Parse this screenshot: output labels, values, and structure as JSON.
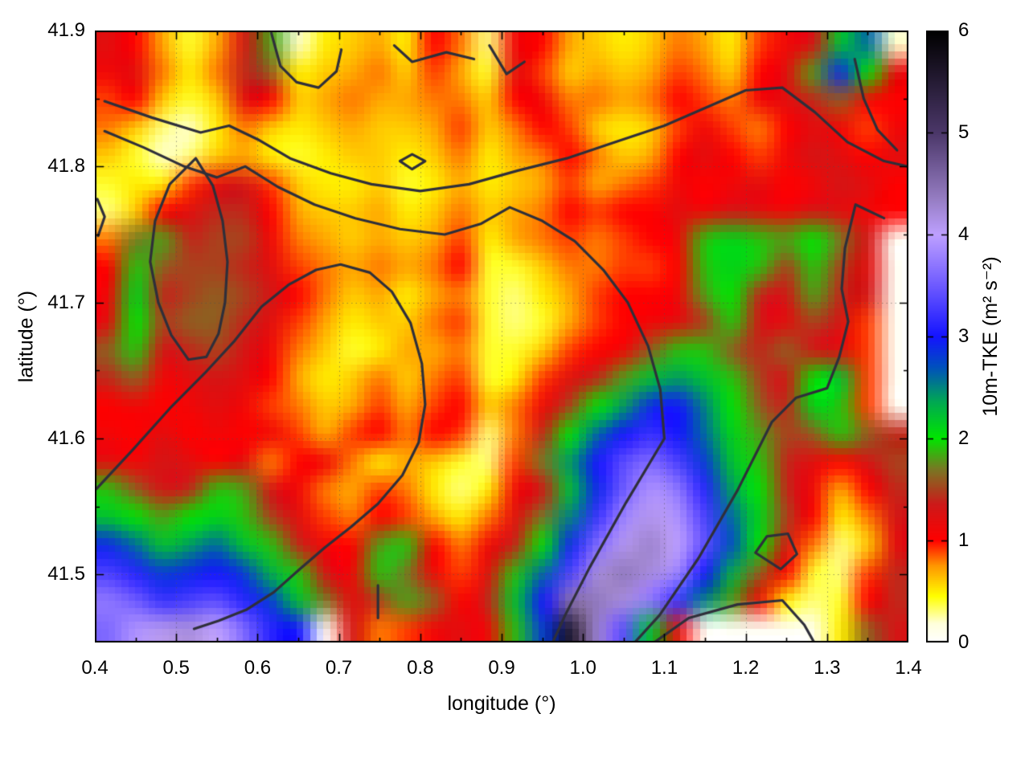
{
  "figure": {
    "background": "#ffffff",
    "title": ""
  },
  "plot": {
    "x_axis": {
      "label": "longitude (°)",
      "min": 0.4,
      "max": 1.4,
      "major_ticks": [
        0.4,
        0.5,
        0.6,
        0.7,
        0.8,
        0.9,
        1.0,
        1.1,
        1.2,
        1.3,
        1.4
      ],
      "tick_labels": [
        "0.4",
        "0.5",
        "0.6",
        "0.7",
        "0.8",
        "0.9",
        "1.0",
        "1.1",
        "1.2",
        "1.3",
        "1.4"
      ],
      "minor_ticks": [
        0.45,
        0.55,
        0.65,
        0.75,
        0.85,
        0.95,
        1.05,
        1.15,
        1.25,
        1.35
      ]
    },
    "y_axis": {
      "label": "latitude (°)",
      "min": 41.45,
      "max": 41.9,
      "major_ticks": [
        41.5,
        41.6,
        41.7,
        41.8,
        41.9
      ],
      "tick_labels": [
        "41.5",
        "41.6",
        "41.7",
        "41.8",
        "41.9"
      ],
      "minor_ticks": [
        41.45,
        41.55,
        41.65,
        41.75,
        41.85
      ]
    },
    "grid": {
      "show": true,
      "style": "dotted",
      "color": "rgba(80,80,80,0.55)"
    },
    "frame_color": "#000000"
  },
  "colorbar": {
    "label": "10m-TKE (m² s⁻²)",
    "min": 0,
    "max": 6,
    "ticks": [
      0,
      1,
      2,
      3,
      4,
      5,
      6
    ],
    "tick_labels": [
      "0",
      "1",
      "2",
      "3",
      "4",
      "5",
      "6"
    ]
  },
  "chart_data": {
    "type": "heatmap",
    "title": "",
    "xlabel": "longitude (°)",
    "ylabel": "latitude (°)",
    "zlabel": "10m-TKE (m² s⁻²)",
    "x_range": [
      0.4,
      1.4
    ],
    "y_range": [
      41.45,
      41.9
    ],
    "z_range": [
      0,
      6
    ],
    "grid_shape": [
      22,
      30
    ],
    "values": [
      [
        1.2,
        1.0,
        0.7,
        0.4,
        0.7,
        1.3,
        1.8,
        0.2,
        0.5,
        0.6,
        0.7,
        0.5,
        1.0,
        0.8,
        0.3,
        1.1,
        1.0,
        0.7,
        0.6,
        0.5,
        0.6,
        0.8,
        0.7,
        0.5,
        0.9,
        1.1,
        1.3,
        2.2,
        2.6,
        0.2
      ],
      [
        1.1,
        1.2,
        0.8,
        0.5,
        0.8,
        1.4,
        1.6,
        0.5,
        0.6,
        0.7,
        0.8,
        0.6,
        0.9,
        0.7,
        0.4,
        1.2,
        0.9,
        0.6,
        0.7,
        0.6,
        0.7,
        0.9,
        0.8,
        0.6,
        1.0,
        1.2,
        1.8,
        2.9,
        2.0,
        1.2
      ],
      [
        0.9,
        1.0,
        0.6,
        0.4,
        0.6,
        1.2,
        1.0,
        0.6,
        0.7,
        0.8,
        0.7,
        0.7,
        0.8,
        0.8,
        0.6,
        1.0,
        1.1,
        0.8,
        0.8,
        0.7,
        0.8,
        1.0,
        0.9,
        0.8,
        1.1,
        1.2,
        1.4,
        1.6,
        1.1,
        1.0
      ],
      [
        0.8,
        0.6,
        0.3,
        0.2,
        0.5,
        0.8,
        0.6,
        0.5,
        0.6,
        0.7,
        0.6,
        0.6,
        0.7,
        0.9,
        0.6,
        0.8,
        1.0,
        0.9,
        0.6,
        0.5,
        0.6,
        0.9,
        1.1,
        0.9,
        0.8,
        1.0,
        1.2,
        1.1,
        0.9,
        1.1
      ],
      [
        0.6,
        0.4,
        0.2,
        0.3,
        0.6,
        0.7,
        0.5,
        0.4,
        0.5,
        0.6,
        0.6,
        0.5,
        0.6,
        0.8,
        0.5,
        0.7,
        0.8,
        1.0,
        0.8,
        0.6,
        0.7,
        1.0,
        1.2,
        1.0,
        0.9,
        1.1,
        1.3,
        1.2,
        1.0,
        1.2
      ],
      [
        0.4,
        0.5,
        0.5,
        0.9,
        1.2,
        1.3,
        0.9,
        0.6,
        0.5,
        0.5,
        0.6,
        0.4,
        0.5,
        0.7,
        0.5,
        0.6,
        0.7,
        0.9,
        0.7,
        0.8,
        0.9,
        1.1,
        1.0,
        1.1,
        1.2,
        1.0,
        1.1,
        1.3,
        1.2,
        1.0
      ],
      [
        0.3,
        0.6,
        1.0,
        1.2,
        1.4,
        1.4,
        1.0,
        0.7,
        0.6,
        0.6,
        0.7,
        0.5,
        0.6,
        0.8,
        0.6,
        0.7,
        0.8,
        1.0,
        0.9,
        1.0,
        1.0,
        1.2,
        1.1,
        1.3,
        1.2,
        1.1,
        1.3,
        1.2,
        1.1,
        1.0
      ],
      [
        0.8,
        1.7,
        1.8,
        1.4,
        1.5,
        1.5,
        1.1,
        0.8,
        0.7,
        0.6,
        0.7,
        0.6,
        0.7,
        0.9,
        0.5,
        0.7,
        0.8,
        0.9,
        0.8,
        0.9,
        1.0,
        1.1,
        1.9,
        2.1,
        1.9,
        1.8,
        2.0,
        1.7,
        1.3,
        0.05
      ],
      [
        1.0,
        1.9,
        1.6,
        1.5,
        1.5,
        1.4,
        1.2,
        0.9,
        0.8,
        0.7,
        0.8,
        0.7,
        0.8,
        1.0,
        0.4,
        0.4,
        0.6,
        0.8,
        0.8,
        0.9,
        0.9,
        1.0,
        1.9,
        2.1,
        1.9,
        1.5,
        1.9,
        1.5,
        1.2,
        0.05
      ],
      [
        1.1,
        2.1,
        1.4,
        1.5,
        1.6,
        1.5,
        1.3,
        1.0,
        0.8,
        0.6,
        0.7,
        0.5,
        0.7,
        0.8,
        0.4,
        0.3,
        0.5,
        0.7,
        0.9,
        1.0,
        1.0,
        1.1,
        1.8,
        2.0,
        1.4,
        1.3,
        1.8,
        1.4,
        1.3,
        0.05
      ],
      [
        1.2,
        2.0,
        1.5,
        1.6,
        1.6,
        1.4,
        1.2,
        0.9,
        0.7,
        0.5,
        0.6,
        0.6,
        0.8,
        0.9,
        0.4,
        0.3,
        0.4,
        0.7,
        0.9,
        1.0,
        1.1,
        1.2,
        1.5,
        1.9,
        1.3,
        1.2,
        1.5,
        1.3,
        0.9,
        0.05
      ],
      [
        1.6,
        1.9,
        1.3,
        1.4,
        1.5,
        1.3,
        1.1,
        0.8,
        0.6,
        0.4,
        0.5,
        0.7,
        0.7,
        0.8,
        0.4,
        0.4,
        0.6,
        0.9,
        1.0,
        1.1,
        1.6,
        1.9,
        1.9,
        1.6,
        1.4,
        1.6,
        1.3,
        1.2,
        0.9,
        0.05
      ],
      [
        1.4,
        1.6,
        1.1,
        1.2,
        1.3,
        1.2,
        1.0,
        0.7,
        0.5,
        0.6,
        0.8,
        0.6,
        0.8,
        0.9,
        0.4,
        0.5,
        0.9,
        1.2,
        1.4,
        1.8,
        2.2,
        2.4,
        2.2,
        1.9,
        1.5,
        1.3,
        2.0,
        2.2,
        0.9,
        0.05
      ],
      [
        1.0,
        1.1,
        1.0,
        1.1,
        1.2,
        1.1,
        0.9,
        0.8,
        0.6,
        0.7,
        0.9,
        0.7,
        0.9,
        1.0,
        0.6,
        0.8,
        1.1,
        1.5,
        2.0,
        2.4,
        2.9,
        3.0,
        2.5,
        2.0,
        1.6,
        1.4,
        2.1,
        1.9,
        0.9,
        0.05
      ],
      [
        1.1,
        1.0,
        1.2,
        1.0,
        1.1,
        1.0,
        1.1,
        0.9,
        0.7,
        0.9,
        1.0,
        0.8,
        1.0,
        0.9,
        0.3,
        0.8,
        1.4,
        2.0,
        2.6,
        3.0,
        3.2,
        3.0,
        2.6,
        2.1,
        1.8,
        1.5,
        1.6,
        1.9,
        1.6,
        1.4
      ],
      [
        1.2,
        1.1,
        1.3,
        1.2,
        1.0,
        1.2,
        0.8,
        1.0,
        1.1,
        0.8,
        0.5,
        0.7,
        0.6,
        0.4,
        0.3,
        0.9,
        1.7,
        2.4,
        3.0,
        3.4,
        3.6,
        3.3,
        2.8,
        2.2,
        1.9,
        1.4,
        1.2,
        1.0,
        1.3,
        1.5
      ],
      [
        1.9,
        1.6,
        1.3,
        1.4,
        1.9,
        1.8,
        1.3,
        1.1,
        0.8,
        0.7,
        0.9,
        0.8,
        0.5,
        0.3,
        0.5,
        1.1,
        1.3,
        2.2,
        2.9,
        3.5,
        3.9,
        3.7,
        3.1,
        2.4,
        2.0,
        1.4,
        1.1,
        0.7,
        1.0,
        1.4
      ],
      [
        2.2,
        2.0,
        1.8,
        2.0,
        2.1,
        1.9,
        1.5,
        1.2,
        0.9,
        0.8,
        1.0,
        0.9,
        0.7,
        0.5,
        0.8,
        1.2,
        1.7,
        2.5,
        3.2,
        3.8,
        4.1,
        3.9,
        3.3,
        2.6,
        2.1,
        1.5,
        1.0,
        0.5,
        0.8,
        1.3
      ],
      [
        2.9,
        2.6,
        2.2,
        2.4,
        2.6,
        2.2,
        1.9,
        1.4,
        1.1,
        1.0,
        1.8,
        1.9,
        1.0,
        0.8,
        1.1,
        1.4,
        2.0,
        2.9,
        3.6,
        4.1,
        4.3,
        4.0,
        3.4,
        2.7,
        2.0,
        1.3,
        0.8,
        0.3,
        0.6,
        1.2
      ],
      [
        3.3,
        3.1,
        2.8,
        2.9,
        3.0,
        2.8,
        2.3,
        1.9,
        1.3,
        1.1,
        1.9,
        1.7,
        1.1,
        0.9,
        1.2,
        1.9,
        2.6,
        3.3,
        4.2,
        4.4,
        4.2,
        3.8,
        3.0,
        2.3,
        1.6,
        1.0,
        0.4,
        0.3,
        0.9,
        1.4
      ],
      [
        3.7,
        3.5,
        3.2,
        3.3,
        3.4,
        3.1,
        2.8,
        2.2,
        1.7,
        1.2,
        1.5,
        1.8,
        1.6,
        1.0,
        1.4,
        2.2,
        3.0,
        4.5,
        4.4,
        4.2,
        3.7,
        3.2,
        2.5,
        1.8,
        1.1,
        0.5,
        0.3,
        0.4,
        1.0,
        1.4
      ],
      [
        3.6,
        3.9,
        4.1,
        4.2,
        4.0,
        3.6,
        3.1,
        3.0,
        0.05,
        1.3,
        0.8,
        0.9,
        1.1,
        1.2,
        1.1,
        1.9,
        2.8,
        5.6,
        4.3,
        3.4,
        2.2,
        1.2,
        0.05,
        0.05,
        0.05,
        0.05,
        0.1,
        0.5,
        1.6,
        1.3
      ]
    ],
    "palette_stops": [
      [
        0.0,
        "#ffffff"
      ],
      [
        0.18,
        "#ffffdc"
      ],
      [
        0.45,
        "#ffff00"
      ],
      [
        0.75,
        "#ff9600"
      ],
      [
        1.0,
        "#ff0000"
      ],
      [
        1.35,
        "#cd1919"
      ],
      [
        1.7,
        "#787823"
      ],
      [
        2.0,
        "#00e600"
      ],
      [
        2.35,
        "#00aa50"
      ],
      [
        2.7,
        "#0050be"
      ],
      [
        3.0,
        "#1414ff"
      ],
      [
        3.5,
        "#6e5aff"
      ],
      [
        4.0,
        "#bea0ff"
      ],
      [
        4.35,
        "#967dc3"
      ],
      [
        5.0,
        "#4b3769"
      ],
      [
        6.0,
        "#000000"
      ]
    ],
    "contour_color": "#2f2f3a",
    "contours": [
      [
        [
          0.412,
          41.848
        ],
        [
          0.47,
          41.836
        ],
        [
          0.53,
          41.825
        ],
        [
          0.565,
          41.83
        ],
        [
          0.6,
          41.82
        ],
        [
          0.64,
          41.806
        ],
        [
          0.69,
          41.795
        ],
        [
          0.74,
          41.787
        ],
        [
          0.8,
          41.782
        ],
        [
          0.86,
          41.787
        ],
        [
          0.92,
          41.797
        ],
        [
          0.98,
          41.806
        ],
        [
          1.04,
          41.818
        ],
        [
          1.1,
          41.83
        ],
        [
          1.15,
          41.843
        ],
        [
          1.2,
          41.856
        ],
        [
          1.245,
          41.858
        ],
        [
          1.285,
          41.84
        ],
        [
          1.325,
          41.818
        ],
        [
          1.37,
          41.804
        ],
        [
          1.4,
          41.8
        ]
      ],
      [
        [
          0.412,
          41.826
        ],
        [
          0.46,
          41.814
        ],
        [
          0.51,
          41.8
        ],
        [
          0.55,
          41.792
        ],
        [
          0.585,
          41.8
        ],
        [
          0.625,
          41.785
        ],
        [
          0.67,
          41.772
        ],
        [
          0.72,
          41.762
        ],
        [
          0.775,
          41.754
        ],
        [
          0.83,
          41.75
        ],
        [
          0.875,
          41.758
        ],
        [
          0.91,
          41.77
        ],
        [
          0.95,
          41.76
        ],
        [
          0.99,
          41.745
        ],
        [
          1.025,
          41.724
        ],
        [
          1.055,
          41.7
        ],
        [
          1.08,
          41.668
        ],
        [
          1.095,
          41.636
        ],
        [
          1.1,
          41.6
        ],
        [
          1.053,
          41.553
        ],
        [
          1.008,
          41.505
        ],
        [
          0.978,
          41.47
        ],
        [
          0.962,
          41.449
        ]
      ],
      [
        [
          1.37,
          41.762
        ],
        [
          1.335,
          41.772
        ],
        [
          1.322,
          41.74
        ],
        [
          1.318,
          41.71
        ],
        [
          1.326,
          41.686
        ],
        [
          1.315,
          41.66
        ],
        [
          1.3,
          41.637
        ],
        [
          1.262,
          41.63
        ],
        [
          1.232,
          41.612
        ],
        [
          1.19,
          41.562
        ],
        [
          1.142,
          41.512
        ],
        [
          1.094,
          41.47
        ],
        [
          1.062,
          41.449
        ]
      ],
      [
        [
          0.617,
          41.898
        ],
        [
          0.628,
          41.874
        ],
        [
          0.648,
          41.862
        ],
        [
          0.675,
          41.858
        ],
        [
          0.697,
          41.87
        ],
        [
          0.703,
          41.886
        ]
      ],
      [
        [
          0.768,
          41.889
        ],
        [
          0.79,
          41.877
        ],
        [
          0.832,
          41.884
        ],
        [
          0.866,
          41.879
        ]
      ],
      [
        [
          0.885,
          41.889
        ],
        [
          0.906,
          41.868
        ],
        [
          0.928,
          41.877
        ]
      ],
      [
        [
          0.524,
          41.806
        ],
        [
          0.492,
          41.787
        ],
        [
          0.474,
          41.76
        ],
        [
          0.468,
          41.73
        ],
        [
          0.478,
          41.7
        ],
        [
          0.494,
          41.676
        ],
        [
          0.515,
          41.658
        ],
        [
          0.537,
          41.66
        ],
        [
          0.552,
          41.677
        ],
        [
          0.56,
          41.7
        ],
        [
          0.563,
          41.73
        ],
        [
          0.557,
          41.76
        ],
        [
          0.545,
          41.786
        ],
        [
          0.524,
          41.806
        ]
      ],
      [
        [
          0.402,
          41.563
        ],
        [
          0.447,
          41.592
        ],
        [
          0.492,
          41.622
        ],
        [
          0.535,
          41.648
        ],
        [
          0.572,
          41.672
        ],
        [
          0.605,
          41.697
        ],
        [
          0.638,
          41.713
        ],
        [
          0.672,
          41.724
        ],
        [
          0.702,
          41.728
        ],
        [
          0.738,
          41.722
        ],
        [
          0.765,
          41.708
        ],
        [
          0.788,
          41.685
        ],
        [
          0.802,
          41.655
        ],
        [
          0.806,
          41.625
        ],
        [
          0.798,
          41.597
        ],
        [
          0.778,
          41.573
        ],
        [
          0.748,
          41.552
        ],
        [
          0.715,
          41.535
        ],
        [
          0.683,
          41.52
        ],
        [
          0.652,
          41.504
        ],
        [
          0.62,
          41.487
        ],
        [
          0.586,
          41.474
        ],
        [
          0.552,
          41.466
        ],
        [
          0.522,
          41.46
        ]
      ],
      [
        [
          1.085,
          41.449
        ],
        [
          1.13,
          41.468
        ],
        [
          1.19,
          41.478
        ],
        [
          1.245,
          41.481
        ],
        [
          1.272,
          41.463
        ],
        [
          1.287,
          41.447
        ]
      ],
      [
        [
          0.775,
          41.804
        ],
        [
          0.79,
          41.809
        ],
        [
          0.806,
          41.804
        ],
        [
          0.79,
          41.798
        ],
        [
          0.775,
          41.804
        ]
      ],
      [
        [
          0.403,
          41.776
        ],
        [
          0.412,
          41.763
        ],
        [
          0.404,
          41.749
        ]
      ],
      [
        [
          1.212,
          41.516
        ],
        [
          1.243,
          41.504
        ],
        [
          1.263,
          41.515
        ],
        [
          1.252,
          41.53
        ],
        [
          1.226,
          41.528
        ],
        [
          1.212,
          41.516
        ]
      ],
      [
        [
          0.748,
          41.492
        ],
        [
          0.748,
          41.468
        ]
      ],
      [
        [
          1.334,
          41.879
        ],
        [
          1.345,
          41.85
        ],
        [
          1.362,
          41.827
        ],
        [
          1.386,
          41.812
        ]
      ]
    ]
  }
}
